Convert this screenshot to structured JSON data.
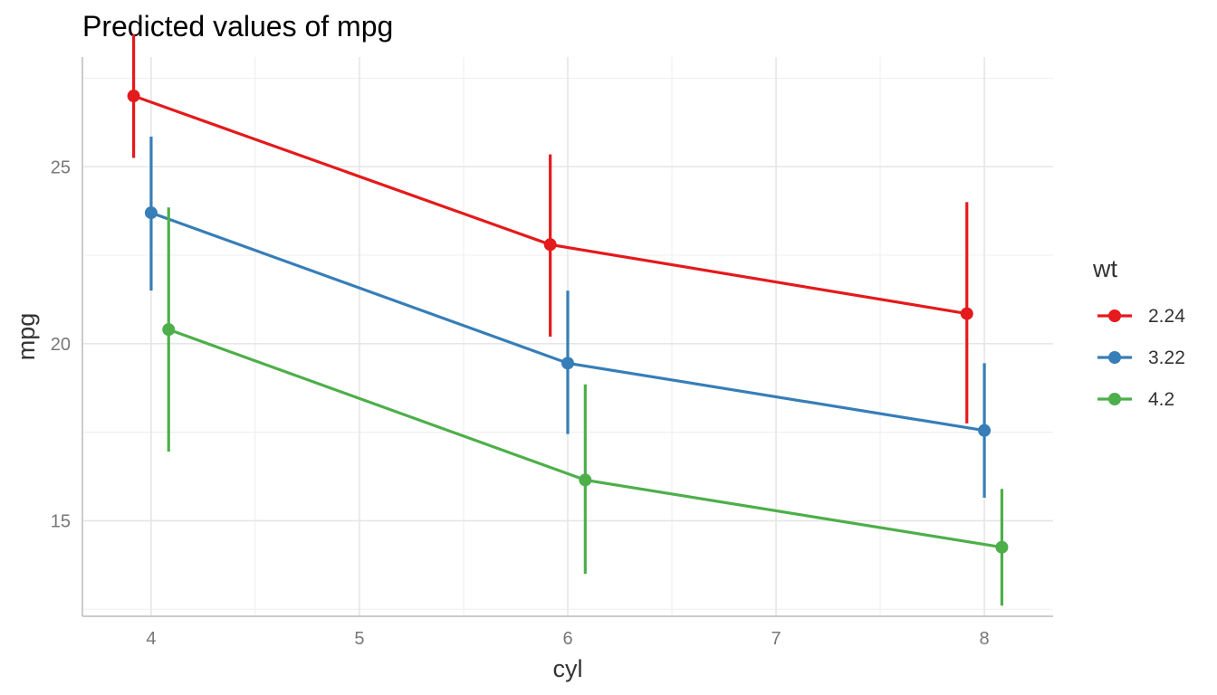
{
  "chart_data": {
    "type": "line",
    "title": "Predicted values of mpg",
    "xlabel": "cyl",
    "ylabel": "mpg",
    "xlim": [
      3.67,
      8.33
    ],
    "ylim": [
      12.3,
      28.1
    ],
    "x_ticks": [
      4,
      5,
      6,
      7,
      8
    ],
    "y_ticks": [
      15,
      20,
      25
    ],
    "grid": true,
    "legend": {
      "title": "wt",
      "position": "right"
    },
    "x": [
      4,
      6,
      8
    ],
    "series": [
      {
        "name": "2.24",
        "color": "#E41A1C",
        "values": [
          27.0,
          22.8,
          20.85
        ],
        "lower": [
          25.25,
          20.2,
          17.75
        ],
        "upper": [
          28.75,
          25.35,
          24.0
        ]
      },
      {
        "name": "3.22",
        "color": "#377EB8",
        "values": [
          23.7,
          19.45,
          17.55
        ],
        "lower": [
          21.5,
          17.45,
          15.65
        ],
        "upper": [
          25.85,
          21.5,
          19.45
        ]
      },
      {
        "name": "4.2",
        "color": "#4DAF4A",
        "values": [
          20.4,
          16.15,
          14.25
        ],
        "lower": [
          16.95,
          13.5,
          12.6
        ],
        "upper": [
          23.85,
          18.85,
          15.9
        ]
      }
    ]
  }
}
